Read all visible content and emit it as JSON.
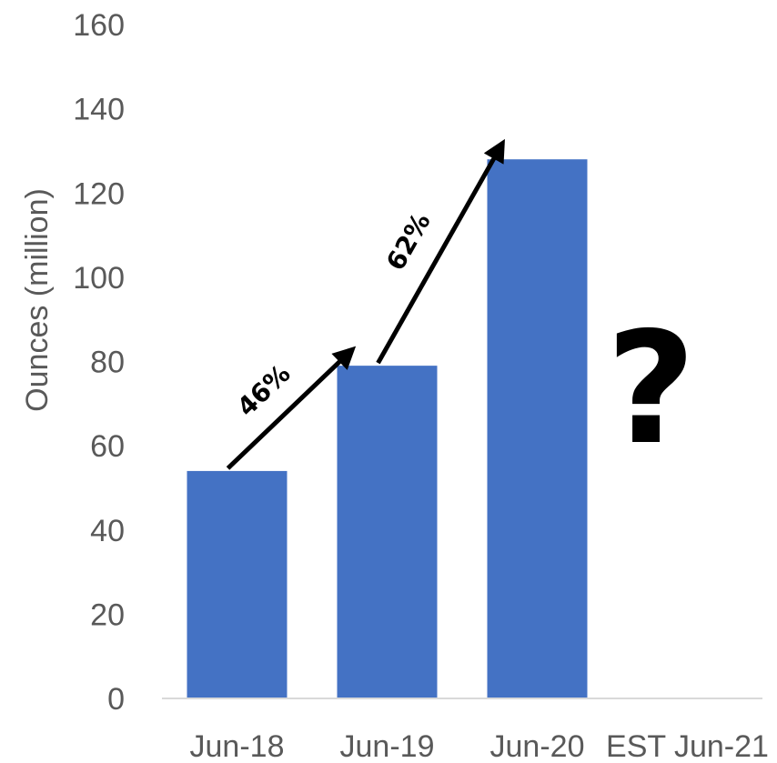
{
  "chart_data": {
    "type": "bar",
    "categories": [
      "Jun-18",
      "Jun-19",
      "Jun-20",
      "EST Jun-21"
    ],
    "values": [
      54,
      79,
      128,
      null
    ],
    "ylabel": "Ounces (million)",
    "xlabel": "",
    "ylim": [
      0,
      160
    ],
    "yticks": [
      0,
      20,
      40,
      60,
      80,
      100,
      120,
      140,
      160
    ],
    "grid": false,
    "bar_color": "#4472C4",
    "annotations": [
      {
        "text": "46%",
        "from": "Jun-18",
        "to": "Jun-19"
      },
      {
        "text": "62%",
        "from": "Jun-19",
        "to": "Jun-20"
      },
      {
        "text": "?",
        "at": "EST Jun-21"
      }
    ]
  }
}
